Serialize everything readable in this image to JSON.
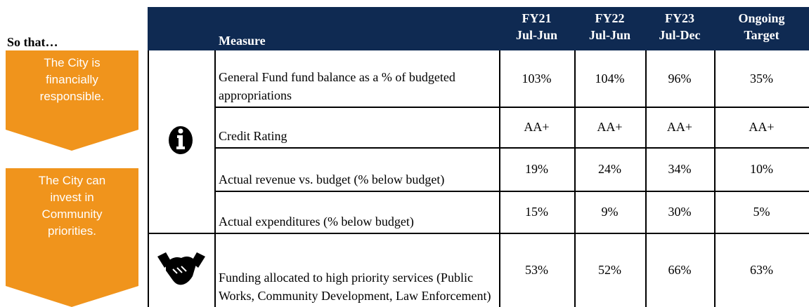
{
  "left_panel": {
    "label": "So that…",
    "arrows": [
      [
        "The City is",
        "financially",
        "responsible."
      ],
      [
        "The City can",
        "invest in",
        "Community",
        "priorities."
      ]
    ]
  },
  "table": {
    "headers": [
      [
        "Measure"
      ],
      [
        "FY21",
        "Jul-Jun"
      ],
      [
        "FY22",
        "Jul-Jun"
      ],
      [
        "FY23",
        "Jul-Dec"
      ],
      [
        "Ongoing",
        "Target"
      ]
    ],
    "rows": [
      {
        "measure": "General Fund fund balance as a % of budgeted appropriations",
        "values": [
          "103%",
          "104%",
          "96%",
          "35%"
        ]
      },
      {
        "measure": "Credit Rating",
        "values": [
          "AA+",
          "AA+",
          "AA+",
          "AA+"
        ]
      },
      {
        "measure": "Actual revenue vs. budget (% below budget)",
        "values": [
          "19%",
          "24%",
          "34%",
          "10%"
        ]
      },
      {
        "measure": "Actual expenditures (% below budget)",
        "values": [
          "15%",
          "9%",
          "30%",
          "5%"
        ]
      },
      {
        "measure": "Funding allocated to high priority services (Public Works, Community Development, Law Enforcement)",
        "values": [
          "53%",
          "52%",
          "66%",
          "63%"
        ]
      }
    ]
  }
}
